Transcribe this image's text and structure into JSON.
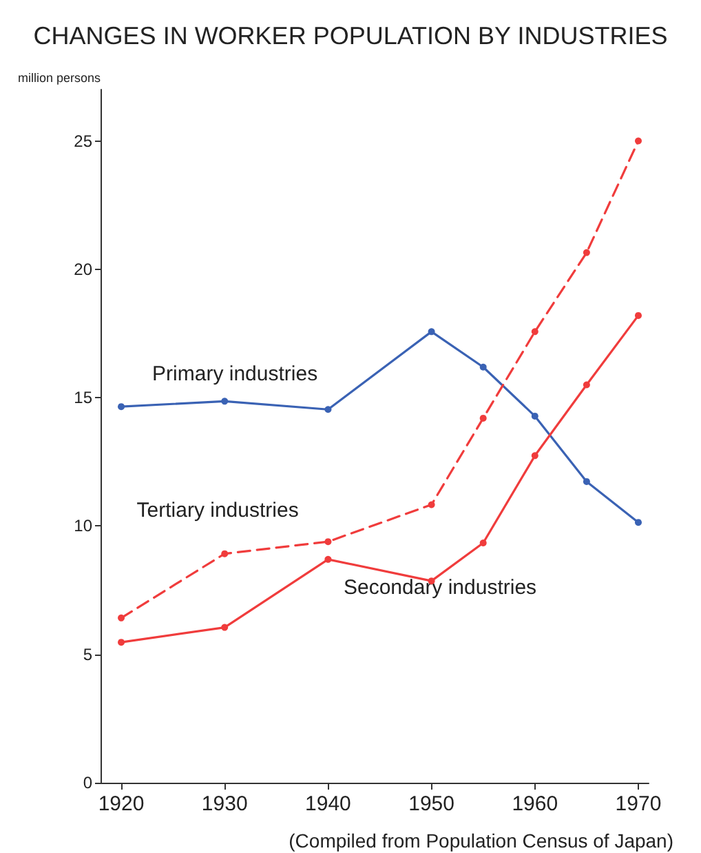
{
  "chart_data": {
    "type": "line",
    "title": "CHANGES IN WORKER POPULATION BY INDUSTRIES",
    "ylabel": "million persons",
    "x": [
      1920,
      1930,
      1940,
      1950,
      1955,
      1960,
      1965,
      1970
    ],
    "series": [
      {
        "name": "Primary industries",
        "color": "#3a62b4",
        "line_style": "solid",
        "values": [
          14.65,
          14.86,
          14.54,
          17.57,
          16.19,
          14.28,
          11.73,
          10.14
        ]
      },
      {
        "name": "Tertiary industries",
        "color": "#f03c3c",
        "line_style": "dashed",
        "values": [
          6.42,
          8.92,
          9.39,
          10.83,
          14.2,
          17.57,
          20.65,
          25.0
        ]
      },
      {
        "name": "Secondary industries",
        "color": "#f03c3c",
        "line_style": "solid",
        "values": [
          5.47,
          6.05,
          8.7,
          7.86,
          9.34,
          12.74,
          15.5,
          18.2
        ]
      }
    ],
    "xlim": [
      1918,
      1971
    ],
    "xticks": [
      1920,
      1930,
      1940,
      1950,
      1960,
      1970
    ],
    "ylim": [
      0,
      27
    ],
    "yticks": [
      0,
      5,
      10,
      15,
      20,
      25
    ],
    "marker": "circle",
    "grid": false,
    "legend": false,
    "annotations": [
      "(Compiled from Population Census of Japan)"
    ]
  }
}
